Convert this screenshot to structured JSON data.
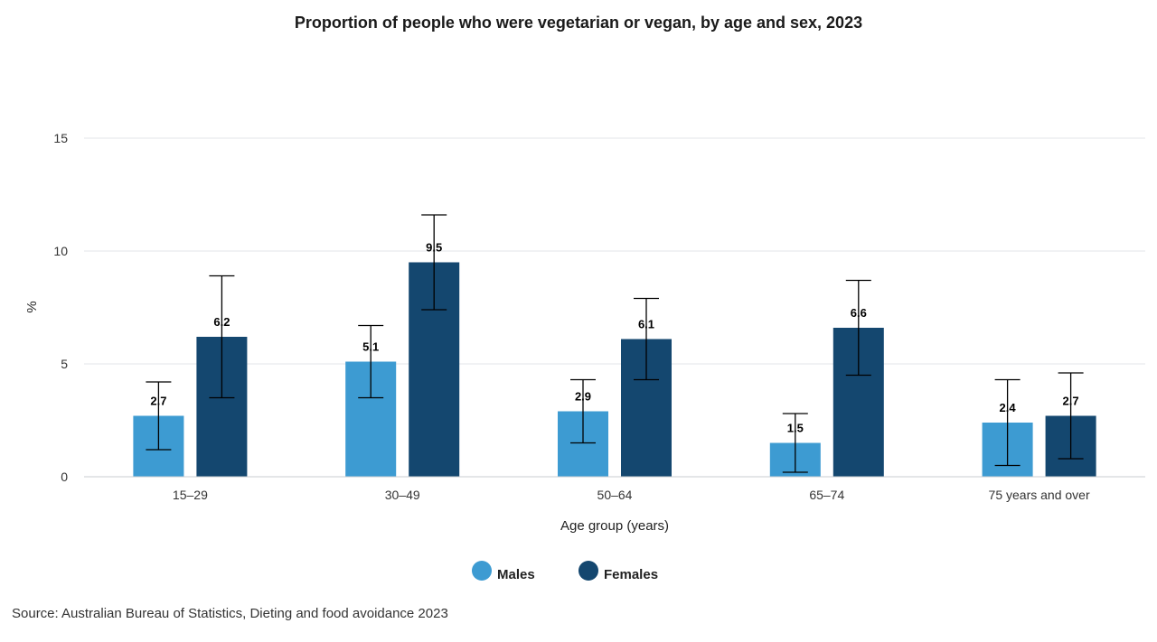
{
  "source": "Source: Australian Bureau of Statistics, Dieting and food avoidance 2023",
  "chart_data": {
    "type": "bar",
    "title": "Proportion of people who were vegetarian or vegan, by age and sex, 2023",
    "xlabel": "Age group (years)",
    "ylabel": "%",
    "ylim": [
      0,
      15
    ],
    "yticks": [
      0,
      5,
      10,
      15
    ],
    "grid": true,
    "legend_position": "bottom",
    "categories": [
      "15–29",
      "30–49",
      "50–64",
      "65–74",
      "75 years and over"
    ],
    "series": [
      {
        "name": "Males",
        "color": "#3d9bd2",
        "values": [
          2.7,
          5.1,
          2.9,
          1.5,
          2.4
        ],
        "error_low": [
          1.2,
          3.5,
          1.5,
          0.2,
          0.5
        ],
        "error_high": [
          4.2,
          6.7,
          4.3,
          2.8,
          4.3
        ]
      },
      {
        "name": "Females",
        "color": "#14476f",
        "values": [
          6.2,
          9.5,
          6.1,
          6.6,
          2.7
        ],
        "error_low": [
          3.5,
          7.4,
          4.3,
          4.5,
          0.8
        ],
        "error_high": [
          8.9,
          11.6,
          7.9,
          8.7,
          4.6
        ]
      }
    ]
  }
}
